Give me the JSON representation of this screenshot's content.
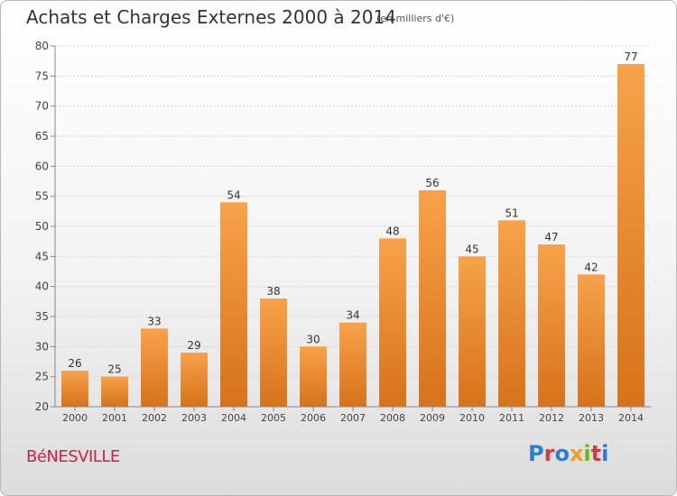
{
  "header": {
    "title": "Achats et Charges Externes 2000 à 2014",
    "subtitle": "(en milliers d'€)"
  },
  "footer": {
    "commune": "BéNESVILLE",
    "logo_text": "Proxiti"
  },
  "colors": {
    "bar_top": "#f7a24a",
    "bar_bottom": "#d6721a",
    "logo_letters": [
      "#2a7fd4",
      "#d63a3a",
      "#2a7fd4",
      "#f0a020",
      "#6ab820",
      "#d63a3a",
      "#2a7fd4"
    ]
  },
  "chart_data": {
    "type": "bar",
    "title": "Achats et Charges Externes 2000 à 2014",
    "subtitle": "(en milliers d'€)",
    "categories": [
      "2000",
      "2001",
      "2002",
      "2003",
      "2004",
      "2005",
      "2006",
      "2007",
      "2008",
      "2009",
      "2010",
      "2011",
      "2012",
      "2013",
      "2014"
    ],
    "values": [
      26,
      25,
      33,
      29,
      54,
      38,
      30,
      34,
      48,
      56,
      45,
      51,
      47,
      42,
      77
    ],
    "yticks": [
      20,
      25,
      30,
      35,
      40,
      45,
      50,
      55,
      60,
      65,
      70,
      75,
      80
    ],
    "ylim": [
      20,
      80
    ],
    "grid": true,
    "legend": "none"
  }
}
